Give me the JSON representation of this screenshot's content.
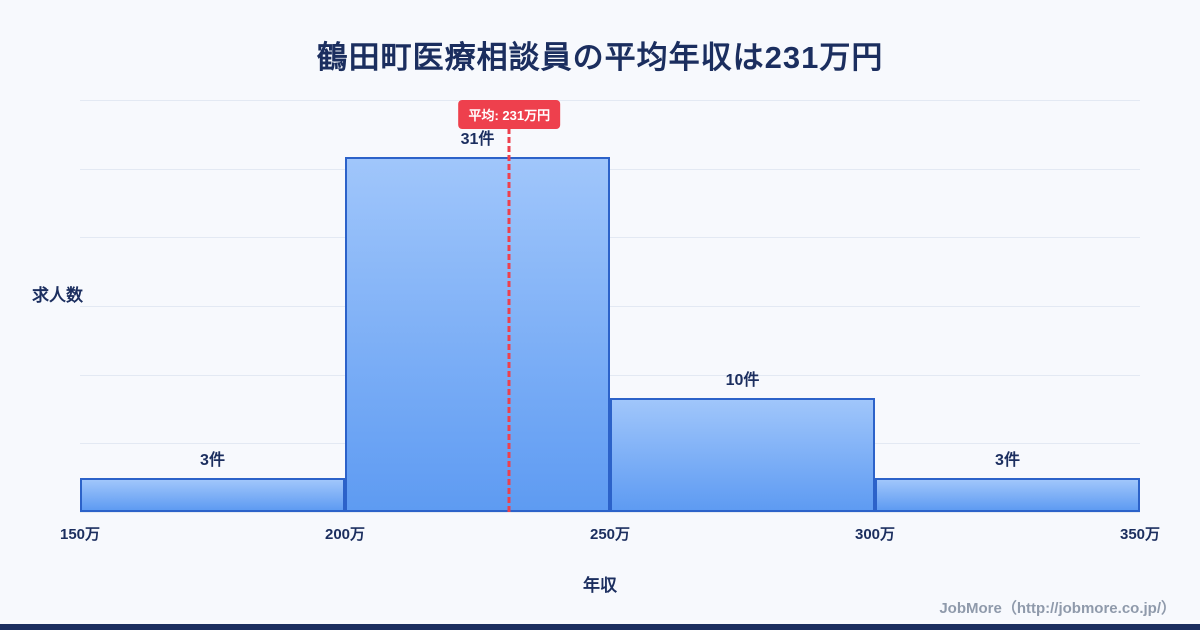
{
  "title": "鶴田町医療相談員の平均年収は231万円",
  "chart_data": {
    "type": "bar",
    "title": "鶴田町医療相談員の平均年収は231万円",
    "xlabel": "年収",
    "ylabel": "求人数",
    "x_ticks": [
      "150万",
      "200万",
      "250万",
      "300万",
      "350万"
    ],
    "bin_edges": [
      150,
      200,
      250,
      300,
      350
    ],
    "values": [
      3,
      31,
      10,
      3
    ],
    "bar_labels": [
      "3件",
      "31件",
      "10件",
      "3件"
    ],
    "unit": "件",
    "ylim": [
      0,
      36
    ],
    "grid_step": 6,
    "grid": true,
    "average": {
      "value": 231,
      "label": "平均: 231万円"
    },
    "colors": {
      "bar_top": "#a0c6fb",
      "bar_bottom": "#5e9bf2",
      "bar_border": "#2c62c9",
      "avg_line": "#ee404d",
      "title_text": "#1b2e5f",
      "background": "#f7f9fd"
    }
  },
  "footer": {
    "credit": "JobMore（http://jobmore.co.jp/）"
  }
}
